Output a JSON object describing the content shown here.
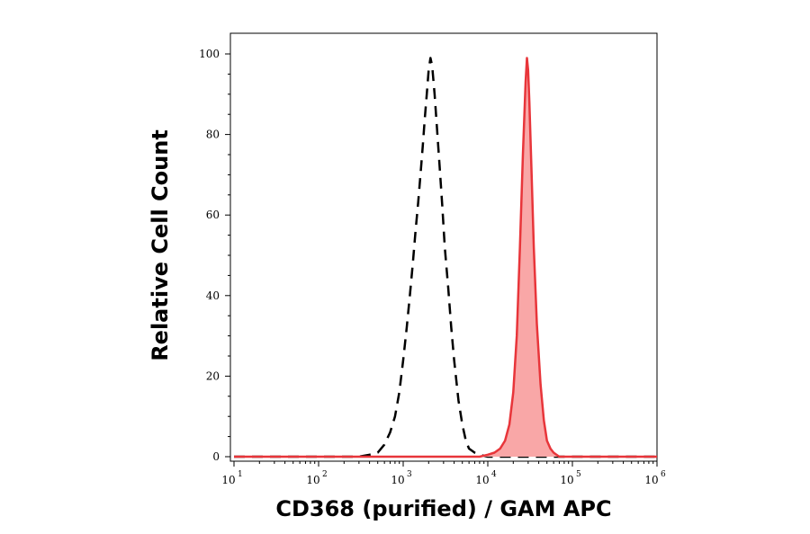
{
  "chart_data": {
    "type": "area",
    "xlabel": "CD368 (purified) / GAM APC",
    "ylabel": "Relative Cell Count",
    "x_scale": "log",
    "xlim": [
      10,
      1000000
    ],
    "ylim": [
      0,
      100
    ],
    "x_ticks": [
      {
        "base": "10",
        "exp": "1",
        "value": 10
      },
      {
        "base": "10",
        "exp": "2",
        "value": 100
      },
      {
        "base": "10",
        "exp": "3",
        "value": 1000
      },
      {
        "base": "10",
        "exp": "4",
        "value": 10000
      },
      {
        "base": "10",
        "exp": "5",
        "value": 100000
      },
      {
        "base": "10",
        "exp": "6",
        "value": 1000000
      }
    ],
    "y_ticks": [
      "0",
      "20",
      "40",
      "60",
      "80",
      "100"
    ],
    "grid": false,
    "series": [
      {
        "style": "dashed black line (isotype control)",
        "color": "#000000",
        "x": [
          10,
          300,
          400,
          500,
          600,
          700,
          800,
          900,
          1000,
          1100,
          1200,
          1300,
          1400,
          1500,
          1600,
          1700,
          1800,
          1900,
          2000,
          2100,
          2200,
          2350,
          2500,
          2700,
          2900,
          3100,
          3400,
          3700,
          4000,
          4500,
          5000,
          5500,
          6000,
          7000,
          8000,
          10000,
          1000000
        ],
        "y": [
          0,
          0,
          0.5,
          1,
          3,
          6,
          10,
          16,
          24,
          32,
          40,
          48,
          56,
          63,
          70,
          77,
          84,
          90,
          96,
          99,
          97,
          90,
          82,
          72,
          62,
          52,
          42,
          32,
          24,
          14,
          8,
          4,
          2,
          1,
          0.5,
          0,
          0
        ]
      },
      {
        "style": "filled red area (CD368 stained)",
        "color": "#e8353a",
        "fill": "#f9a7a7",
        "x": [
          10,
          8000,
          10000,
          12000,
          14000,
          16000,
          18000,
          20000,
          22000,
          24000,
          26000,
          28000,
          29000,
          30000,
          31000,
          33000,
          35000,
          38000,
          42000,
          46000,
          50000,
          55000,
          60000,
          70000,
          80000,
          1000000
        ],
        "y": [
          0,
          0,
          0.5,
          1,
          2,
          4,
          8,
          16,
          30,
          52,
          75,
          93,
          99,
          96,
          88,
          70,
          52,
          33,
          18,
          9,
          4,
          2,
          1,
          0,
          0,
          0
        ]
      }
    ]
  }
}
